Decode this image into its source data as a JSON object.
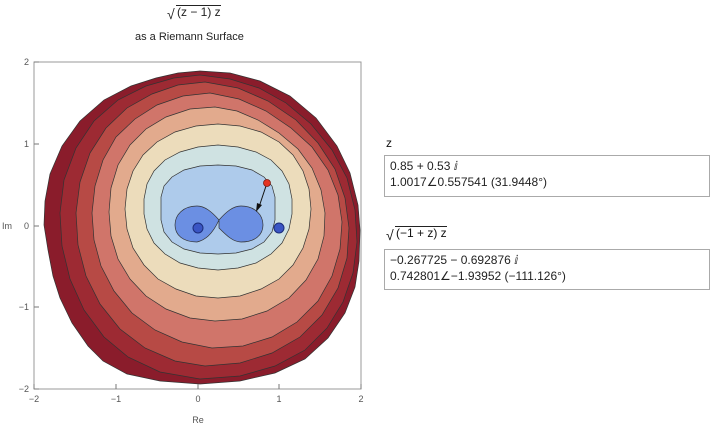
{
  "title": {
    "formula": "(z − 1) z",
    "subtitle": "as a Riemann Surface"
  },
  "plot": {
    "x_ticks": [
      "−2",
      "−1",
      "0",
      "1",
      "2"
    ],
    "y_ticks": [
      "2",
      "1",
      "0",
      "−1",
      "−2"
    ],
    "x_label": "Re",
    "y_label": "Im",
    "branch_points": [
      [
        0,
        0
      ],
      [
        1,
        0
      ]
    ],
    "locator": {
      "re": 0.85,
      "im": 0.53
    }
  },
  "panel": {
    "z_label": "z",
    "z_line1": "0.85 + 0.53 ⅈ",
    "z_line2": "1.0017∠0.557541 (31.9448°)",
    "f_label": "(−1 + z) z",
    "f_line1": "−0.267725 − 0.692876 ⅈ",
    "f_line2": "0.742801∠−1.93952 (−111.126°)"
  }
}
